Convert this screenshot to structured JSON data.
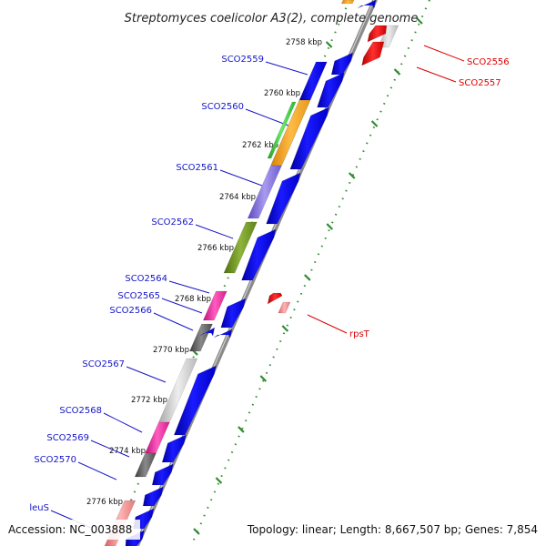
{
  "title": "Streptomyces coelicolor A3(2), complete genome",
  "footer": {
    "accession": "Accession: NC_003888",
    "summary": "Topology: linear; Length: 8,667,507 bp; Genes: 7,854"
  },
  "colors": {
    "backbone": "#8a8a8a",
    "forward_gene": "#0000ee",
    "forward_label": "#1515c8",
    "reverse_label": "#dd0000",
    "tick": "#2e8b2e"
  },
  "kbp_ticks": [
    "2758 kbp",
    "2760 kbp",
    "2762 kbp",
    "2764 kbp",
    "2766 kbp",
    "2768 kbp",
    "2770 kbp",
    "2772 kbp",
    "2774 kbp",
    "2776 kbp"
  ],
  "labels": {
    "left": [
      "SCO2559",
      "SCO2560",
      "SCO2561",
      "SCO2562",
      "SCO2564",
      "SCO2565",
      "SCO2566",
      "SCO2567",
      "SCO2568",
      "SCO2569",
      "SCO2570",
      "leuS"
    ],
    "right": [
      "SCO2556",
      "SCO2557",
      "rpsT"
    ]
  }
}
